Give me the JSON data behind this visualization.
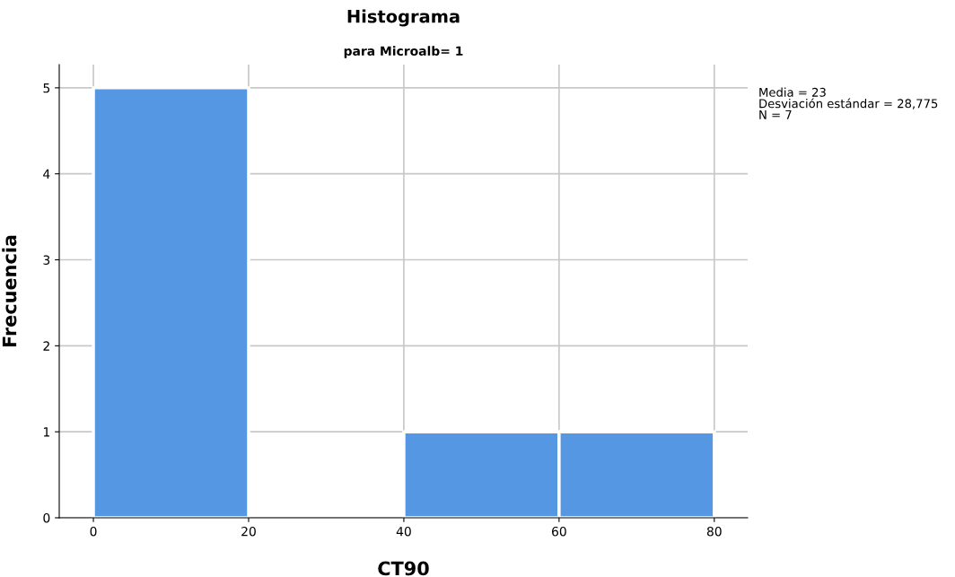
{
  "chart_data": {
    "type": "histogram",
    "title": "Histograma",
    "subtitle": "para Microalb= 1",
    "xlabel": "CT90",
    "ylabel": "Frecuencia",
    "bins": [
      0,
      20,
      40,
      60,
      80
    ],
    "values": [
      5,
      0,
      1,
      1
    ],
    "color": "#5597e3",
    "xlim": [
      -4.4,
      84.3
    ],
    "xticks": [
      0,
      20,
      40,
      60,
      80
    ],
    "ylim": [
      0,
      5.27
    ],
    "yticks": [
      0,
      1,
      2,
      3,
      4,
      5
    ],
    "grid": true,
    "annotations": [
      "Media = 23",
      "Desviación estándar = 28,775",
      "N = 7"
    ]
  }
}
